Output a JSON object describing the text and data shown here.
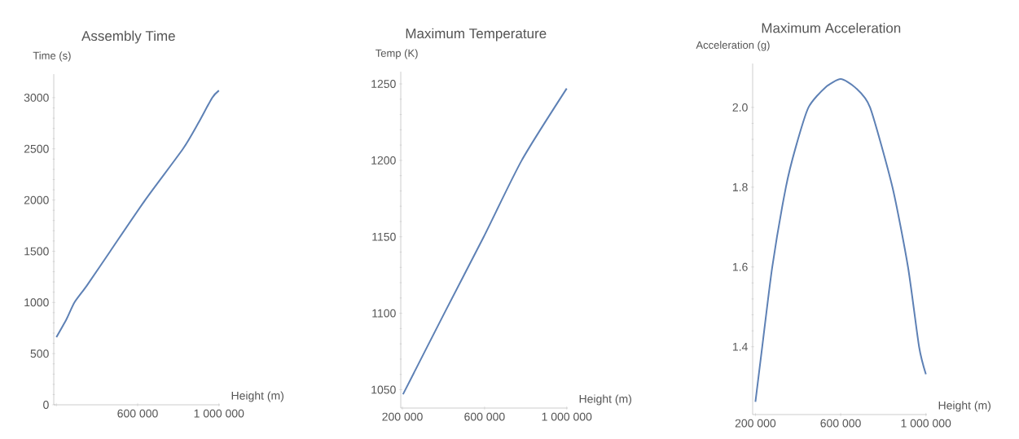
{
  "chart_data": [
    {
      "type": "line",
      "title": "Assembly Time",
      "xlabel": "Height (m)",
      "ylabel": "Time (s)",
      "color": "#5e81b5",
      "xlim": [
        187000,
        1005000
      ],
      "ylim": [
        0,
        3230
      ],
      "xticks": [
        {
          "value": 200000,
          "label": null
        },
        {
          "value": 600000,
          "label": "600 000"
        },
        {
          "value": 1000000,
          "label": "1 000 000"
        }
      ],
      "yticks": [
        0,
        500,
        1000,
        1500,
        2000,
        2500,
        3000
      ],
      "x": [
        200000,
        250000,
        289000,
        350000,
        465000,
        637000,
        823000,
        898000,
        967000,
        1000000
      ],
      "values": [
        660,
        837,
        1000,
        1165,
        1500,
        2000,
        2500,
        2750,
        3000,
        3070
      ]
    },
    {
      "type": "line",
      "title": "Maximum Temperature",
      "xlabel": "Height (m)",
      "ylabel": "Temp (K)",
      "color": "#5e81b5",
      "xlim": [
        192000,
        1005000
      ],
      "ylim": [
        1038,
        1258
      ],
      "xticks": [
        {
          "value": 200000,
          "label": "200 000"
        },
        {
          "value": 600000,
          "label": "600 000"
        },
        {
          "value": 1000000,
          "label": "1 000 000"
        }
      ],
      "yticks": [
        1050,
        1100,
        1150,
        1200,
        1250
      ],
      "x": [
        203000,
        404000,
        596000,
        781000,
        1000000
      ],
      "values": [
        1047,
        1100,
        1150,
        1200,
        1247
      ]
    },
    {
      "type": "line",
      "title": "Maximum Acceleration",
      "xlabel": "Height (m)",
      "ylabel": "Acceleration (g)",
      "color": "#5e81b5",
      "xlim": [
        187000,
        1005000
      ],
      "ylim": [
        1.23,
        2.11
      ],
      "xticks": [
        {
          "value": 200000,
          "label": "200 000"
        },
        {
          "value": 600000,
          "label": "600 000"
        },
        {
          "value": 1000000,
          "label": "1 000 000"
        }
      ],
      "yticks": [
        {
          "value": 1.4,
          "label": "1.4"
        },
        {
          "value": 1.6,
          "label": "1.6"
        },
        {
          "value": 1.8,
          "label": "1.8"
        },
        {
          "value": 2.0,
          "label": "2.0"
        }
      ],
      "x": [
        200000,
        232000,
        279000,
        343000,
        389000,
        449000,
        528000,
        600000,
        668000,
        738000,
        843000,
        916000,
        968000,
        1000000
      ],
      "values": [
        1.262,
        1.4,
        1.6,
        1.8,
        1.9,
        2.0,
        2.05,
        2.071,
        2.05,
        2.0,
        1.8,
        1.6,
        1.4,
        1.331
      ]
    }
  ]
}
